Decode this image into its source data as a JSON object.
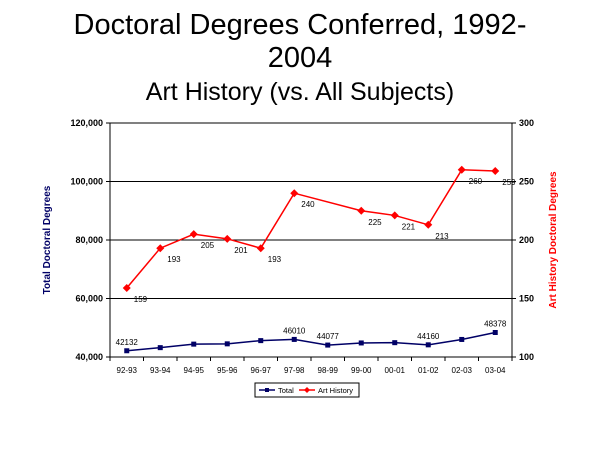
{
  "title_line1": "Doctoral Degrees Conferred, 1992-",
  "title_line2": "2004",
  "subtitle": "Art History (vs. All Subjects)",
  "chart_data": {
    "type": "line",
    "categories": [
      "92-93",
      "93-94",
      "94-95",
      "95-96",
      "96-97",
      "97-98",
      "98-99",
      "99-00",
      "00-01",
      "01-02",
      "02-03",
      "03-04"
    ],
    "ylabel_left": "Total Doctoral Degrees",
    "ylabel_right": "Art History Doctoral Degrees",
    "ylim_left": [
      40000,
      120000
    ],
    "ylim_right": [
      100,
      300
    ],
    "yticks_left": [
      "40,000",
      "60,000",
      "80,000",
      "100,000",
      "120,000"
    ],
    "yticks_right": [
      "100",
      "150",
      "200",
      "250",
      "300"
    ],
    "grid": true,
    "legend_position": "bottom",
    "series": [
      {
        "name": "Total",
        "axis": "left",
        "color": "#000066",
        "marker": "square",
        "values": [
          42132,
          43200,
          44400,
          44500,
          45600,
          46010,
          44077,
          44800,
          44900,
          44160,
          46000,
          48378
        ],
        "labels": [
          "42132",
          "",
          "",
          "",
          "",
          "46010",
          "44077",
          "",
          "",
          "44160",
          "",
          "48378"
        ]
      },
      {
        "name": "Art History",
        "axis": "right",
        "color": "#ff0000",
        "marker": "diamond",
        "values": [
          159,
          193,
          205,
          201,
          193,
          240,
          null,
          225,
          221,
          213,
          260,
          259
        ],
        "labels": [
          "159",
          "193",
          "205",
          "201",
          "193",
          "240",
          "",
          "225",
          "221",
          "213",
          "260",
          "259"
        ]
      }
    ]
  }
}
